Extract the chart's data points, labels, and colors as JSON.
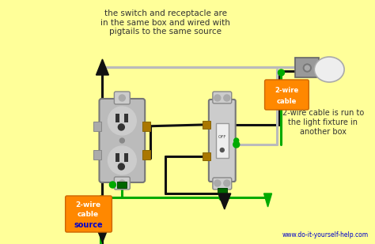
{
  "bg_color": "#FFFF99",
  "title_text": "the switch and receptacle are\nin the same box and wired with\npigtails to the same source",
  "title_fontsize": 7.5,
  "right_text": "2-wire cable is run to\nthe light fixture in\nanother box",
  "website": "www.do-it-yourself-help.com",
  "wire_black": "#111111",
  "wire_white": "#BBBBBB",
  "wire_green": "#00AA00",
  "orange_label": "#FF8800",
  "outlet_gray": "#AAAAAA",
  "outlet_dark": "#555555",
  "screw_gray": "#CCCCCC",
  "terminal_brown": "#AA6600",
  "terminal_green": "#006600"
}
